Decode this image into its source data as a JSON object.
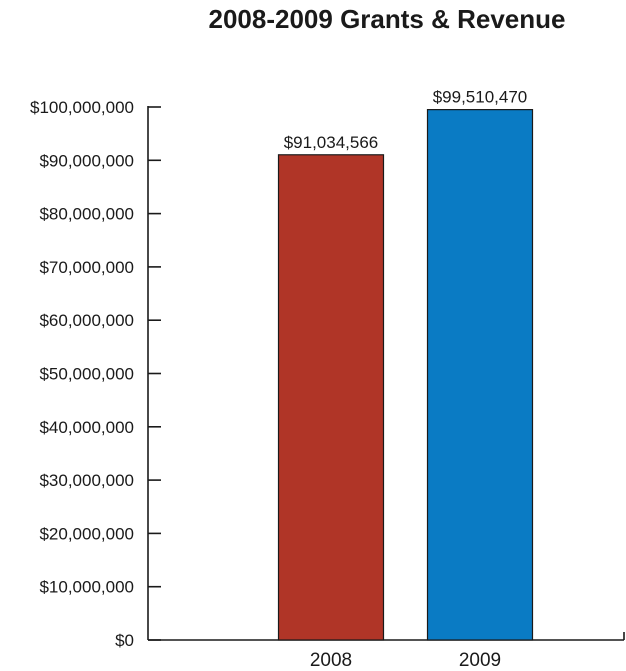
{
  "chart_data": {
    "type": "bar",
    "title": "2008-2009 Grants & Revenue",
    "categories": [
      "2008",
      "2009"
    ],
    "values": [
      91034566,
      99510470
    ],
    "data_labels": [
      "$91,034,566",
      "$99,510,470"
    ],
    "colors": [
      "#b03527",
      "#0a7bc4"
    ],
    "xlabel": "",
    "ylabel": "",
    "ylim": [
      0,
      100000000
    ],
    "yticks": [
      {
        "value": 0,
        "label": "$0"
      },
      {
        "value": 10000000,
        "label": "$10,000,000"
      },
      {
        "value": 20000000,
        "label": "$20,000,000"
      },
      {
        "value": 30000000,
        "label": "$30,000,000"
      },
      {
        "value": 40000000,
        "label": "$40,000,000"
      },
      {
        "value": 50000000,
        "label": "$50,000,000"
      },
      {
        "value": 60000000,
        "label": "$60,000,000"
      },
      {
        "value": 70000000,
        "label": "$70,000,000"
      },
      {
        "value": 80000000,
        "label": "$80,000,000"
      },
      {
        "value": 90000000,
        "label": "$90,000,000"
      },
      {
        "value": 100000000,
        "label": "$100,000,000"
      }
    ],
    "grid": false,
    "legend": "none"
  }
}
